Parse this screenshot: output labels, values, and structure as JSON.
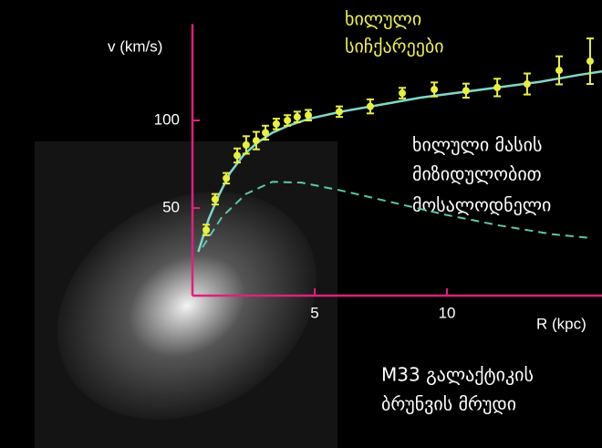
{
  "chart_data": {
    "type": "scatter",
    "x_label": "R (kpc)",
    "y_label": "v (km/s)",
    "xlim": [
      0.38,
      15.86
    ],
    "ylim": [
      0,
      155
    ],
    "xticks": [
      5,
      10
    ],
    "yticks": [
      50,
      100
    ],
    "axis_color": "#e0207a",
    "series": [
      {
        "type": "scatter",
        "color": "#e8f040",
        "x": [
          0.9,
          1.24,
          1.66,
          2.07,
          2.41,
          2.79,
          3.14,
          3.55,
          3.97,
          4.34,
          4.76,
          5.93,
          7.1,
          8.31,
          9.52,
          10.72,
          11.9,
          13.03,
          14.24,
          15.41
        ],
        "values": [
          37.5,
          55,
          67,
          80,
          86,
          88.5,
          93,
          98,
          100,
          102,
          103,
          105,
          108,
          115.6,
          117.7,
          117,
          118.8,
          120.8,
          128.6,
          133.8
        ],
        "errors": [
          3,
          3,
          3,
          4,
          5,
          5,
          4,
          3,
          3,
          3,
          3,
          3,
          4,
          3,
          4,
          4,
          5,
          6,
          8,
          13
        ]
      },
      {
        "type": "line",
        "color": "#80d8c8",
        "x": [
          0.6,
          1.0,
          1.4,
          1.8,
          2.3,
          2.8,
          3.4,
          4.0,
          4.8,
          6.0,
          7.5,
          9.0,
          10.5,
          12.0,
          13.5,
          15.0,
          15.86
        ],
        "values": [
          25,
          44,
          58,
          70,
          80,
          87,
          93,
          97,
          101,
          105,
          109,
          113,
          116,
          119,
          122,
          126,
          128
        ]
      },
      {
        "type": "line",
        "color": "#5cc8a8",
        "dashed": true,
        "x": [
          0.76,
          1.5,
          2.4,
          3.4,
          4.5,
          6.0,
          8.0,
          10.0,
          12.0,
          14.0,
          15.5
        ],
        "values": [
          27.6,
          45,
          58,
          65,
          64.5,
          60,
          53,
          46,
          40,
          35,
          32.8
        ]
      }
    ],
    "annotations": {
      "observed": [
        "ხილული",
        "სიჩქარეები"
      ],
      "expected": [
        "ხილული მასის",
        "მიზიდულობით",
        "მოსალოდნელი"
      ],
      "caption": [
        "M33 გალაქტიკის",
        "ბრუნვის მრუდი"
      ]
    }
  }
}
